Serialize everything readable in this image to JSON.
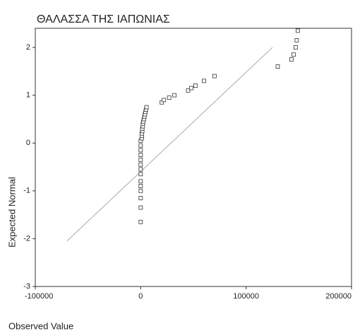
{
  "chart_data": {
    "type": "scatter",
    "title": "ΘΑΛΑΣΣΑ ΤΗΣ ΙΑΠΩΝΙΑΣ",
    "x_label": "Observed Value",
    "y_label": "Expected Normal",
    "xlim": [
      -100000,
      200000
    ],
    "xticks": [
      -100000,
      0,
      100000,
      200000
    ],
    "ylim": [
      -3,
      2.4
    ],
    "yticks": [
      -3,
      -2,
      -1,
      0,
      1,
      2
    ],
    "marker_color": "#333333",
    "line_color": "#aaaaaa",
    "reference_line": {
      "x": [
        -70000,
        125000
      ],
      "values": [
        -2.05,
        2.0
      ]
    },
    "x": [
      0,
      0,
      0,
      0,
      0,
      0,
      0,
      0,
      0,
      0,
      0,
      0,
      0,
      0,
      1000,
      1000,
      1000,
      1500,
      1500,
      2000,
      2000,
      2500,
      3000,
      3500,
      4000,
      4500,
      5000,
      5500,
      20000,
      22000,
      27000,
      32000,
      45000,
      48000,
      52000,
      60000,
      70000,
      130000,
      143000,
      145000,
      147000,
      148000,
      149000
    ],
    "values": [
      -1.65,
      -1.35,
      -1.15,
      -1.0,
      -0.9,
      -0.8,
      -0.65,
      -0.55,
      -0.45,
      -0.35,
      -0.25,
      -0.15,
      -0.05,
      0.05,
      0.1,
      0.15,
      0.2,
      0.25,
      0.3,
      0.35,
      0.4,
      0.45,
      0.5,
      0.55,
      0.6,
      0.65,
      0.7,
      0.75,
      0.85,
      0.9,
      0.95,
      1.0,
      1.1,
      1.15,
      1.2,
      1.3,
      1.4,
      1.6,
      1.75,
      1.85,
      2.0,
      2.15,
      2.35
    ]
  }
}
